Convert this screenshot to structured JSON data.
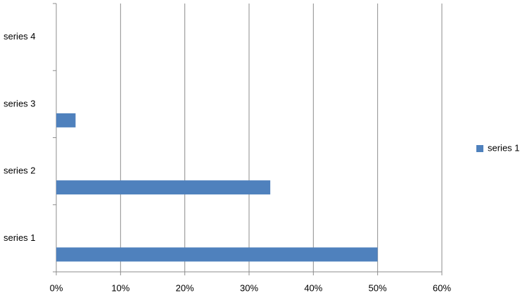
{
  "chart_data": {
    "type": "barh",
    "categories": [
      "series 1",
      "series 2",
      "series 3",
      "series 4"
    ],
    "series": [
      {
        "name": "series 1",
        "color": "#4f81bd",
        "values": [
          50,
          33.3,
          3,
          0
        ]
      }
    ],
    "xlim": [
      0,
      60
    ],
    "xticks": [
      {
        "value": 0,
        "label": "0%"
      },
      {
        "value": 10,
        "label": "10%"
      },
      {
        "value": 20,
        "label": "20%"
      },
      {
        "value": 30,
        "label": "30%"
      },
      {
        "value": 40,
        "label": "40%"
      },
      {
        "value": 50,
        "label": "50%"
      },
      {
        "value": 60,
        "label": "60%"
      }
    ],
    "grid": true,
    "legend": "right"
  }
}
